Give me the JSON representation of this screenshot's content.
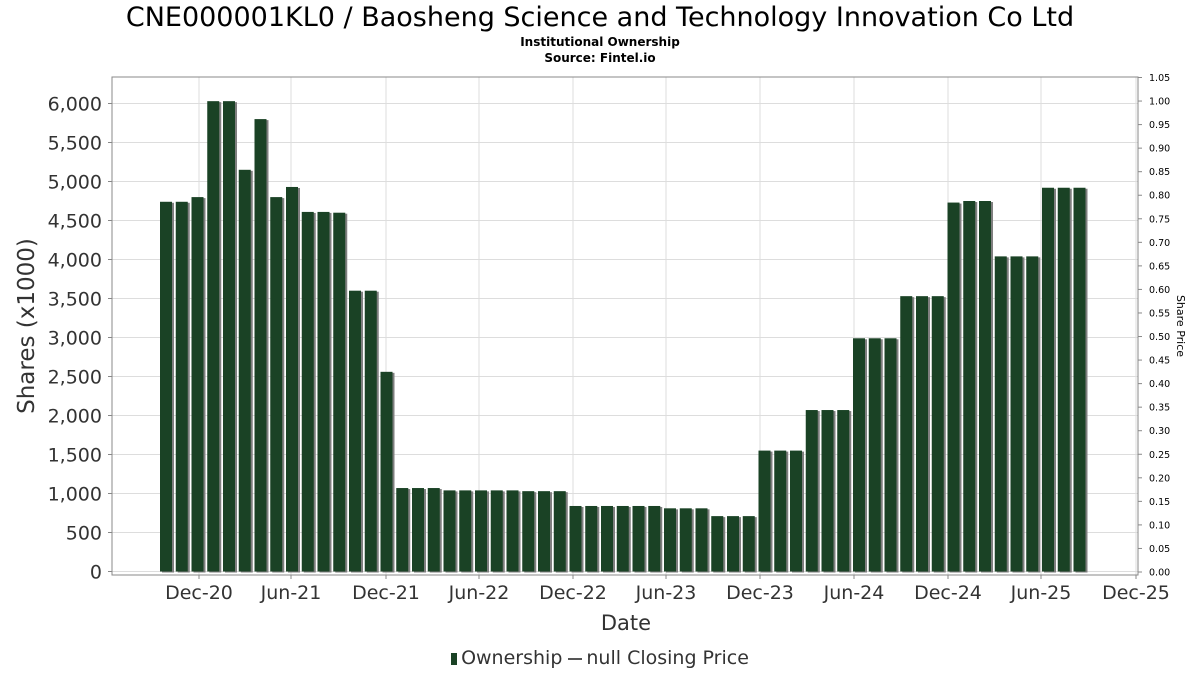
{
  "header": {
    "title": "CNE000001KL0 / Baosheng Science and Technology Innovation Co Ltd",
    "subtitle": "Institutional Ownership",
    "source": "Source: Fintel.io"
  },
  "legend": {
    "ownership_label": "Ownership",
    "price_label": "null Closing Price"
  },
  "colors": {
    "bar": "#1a4225",
    "bar_shadow": "#7f7f7f",
    "grid": "#dddddd"
  },
  "chart_data": {
    "type": "bar",
    "xlabel": "Date",
    "ylabel": "Shares (x1000)",
    "y2label": "Share Price",
    "ylim": [
      0,
      6330
    ],
    "y2lim": [
      0,
      1.05
    ],
    "grid": true,
    "legend_position": "bottom",
    "yticks": [
      "0",
      "500",
      "1,000",
      "1,500",
      "2,000",
      "2,500",
      "3,000",
      "3,500",
      "4,000",
      "4,500",
      "5,000",
      "5,500",
      "6,000"
    ],
    "ytick_values": [
      0,
      500,
      1000,
      1500,
      2000,
      2500,
      3000,
      3500,
      4000,
      4500,
      5000,
      5500,
      6000
    ],
    "y2ticks": [
      "0.00",
      "0.05",
      "0.10",
      "0.15",
      "0.20",
      "0.25",
      "0.30",
      "0.35",
      "0.40",
      "0.45",
      "0.50",
      "0.55",
      "0.60",
      "0.65",
      "0.70",
      "0.75",
      "0.80",
      "0.85",
      "0.90",
      "0.95",
      "1.00",
      "1.05"
    ],
    "xticks": [
      "Dec-20",
      "Jun-21",
      "Dec-21",
      "Jun-22",
      "Dec-22",
      "Jun-23",
      "Dec-23",
      "Jun-24",
      "Dec-24",
      "Jun-25",
      "Dec-25"
    ],
    "series": [
      {
        "name": "Ownership",
        "values": [
          4740,
          4740,
          4800,
          6030,
          6030,
          5150,
          5800,
          4800,
          4930,
          4610,
          4610,
          4600,
          3600,
          3600,
          2560,
          1070,
          1070,
          1070,
          1040,
          1040,
          1040,
          1040,
          1040,
          1030,
          1030,
          1030,
          840,
          840,
          840,
          840,
          840,
          840,
          810,
          810,
          810,
          710,
          710,
          710,
          1550,
          1550,
          1550,
          2070,
          2070,
          2070,
          2990,
          2990,
          2990,
          3530,
          3530,
          3530,
          4730,
          4750,
          4750,
          4040,
          4040,
          4040,
          4920,
          4920,
          4920
        ]
      }
    ]
  }
}
